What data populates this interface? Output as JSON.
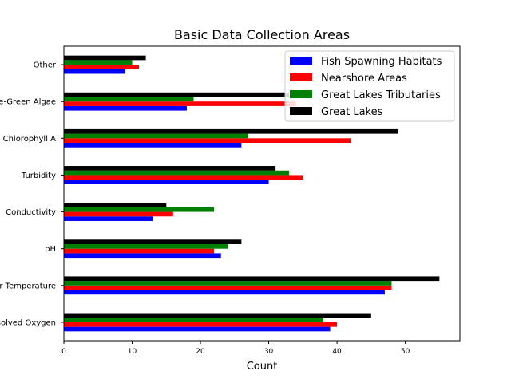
{
  "chart_data": {
    "type": "bar",
    "orientation": "horizontal",
    "title": "Basic Data Collection Areas",
    "xlabel": "Count",
    "ylabel": "",
    "xlim": [
      0,
      58
    ],
    "xticks": [
      0,
      10,
      20,
      30,
      40,
      50
    ],
    "categories": [
      "Dissolved Oxygen",
      "Water Temperature",
      "pH",
      "Conductivity",
      "Turbidity",
      "Chlorophyll A",
      "Blue-Green Algae",
      "Other"
    ],
    "series": [
      {
        "name": "Fish Spawning Habitats",
        "color": "#0000ff",
        "values": [
          39,
          47,
          23,
          13,
          30,
          26,
          18,
          9
        ]
      },
      {
        "name": "Nearshore Areas",
        "color": "#ff0000",
        "values": [
          40,
          48,
          22,
          16,
          35,
          42,
          34,
          11
        ]
      },
      {
        "name": "Great Lakes Tributaries",
        "color": "#008000",
        "values": [
          38,
          48,
          24,
          22,
          33,
          27,
          19,
          10
        ]
      },
      {
        "name": "Great Lakes",
        "color": "#000000",
        "values": [
          45,
          55,
          26,
          15,
          31,
          49,
          33,
          12
        ]
      }
    ],
    "legend_position": "top-right",
    "grid": false
  }
}
